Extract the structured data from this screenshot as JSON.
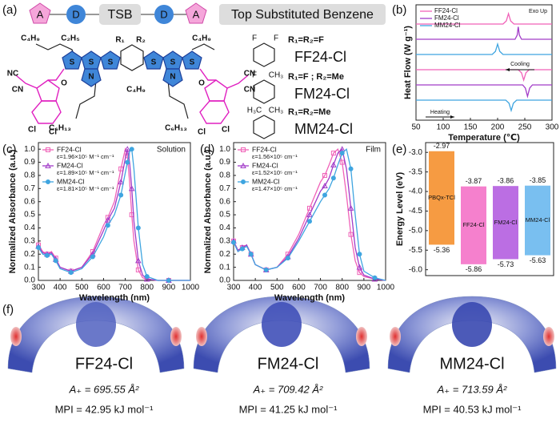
{
  "panel_labels": [
    "(a)",
    "(b)",
    "(c)",
    "(d)",
    "(e)",
    "(f)"
  ],
  "scheme": {
    "units": [
      "A",
      "D",
      "TSB",
      "D",
      "A"
    ],
    "caption": "Top Substituted Benzene",
    "molecule_labels": [
      "C₄H₉",
      "C₂H₅",
      "R₁",
      "R₂",
      "S",
      "S",
      "S",
      "S",
      "S",
      "S",
      "N",
      "N",
      "NC",
      "CN",
      "O",
      "O",
      "C₄H₉",
      "C₆H₁₃",
      "C₆H₁₃",
      "C₄H₉",
      "CN",
      "CN",
      "Cl",
      "Cl",
      "Cl",
      "Cl"
    ],
    "substituents": [
      {
        "formula": "R₁=R₂=F",
        "name": "FF24-Cl",
        "atoms": [
          "F",
          "F"
        ],
        "color": "#e83fbf"
      },
      {
        "formula": "R₁=F ; R₂=Me",
        "name": "FM24-Cl",
        "atoms": [
          "F",
          "CH₃"
        ],
        "color": "#8e1e8e"
      },
      {
        "formula": "R₁=R₂=Me",
        "name": "MM24-Cl",
        "atoms": [
          "H₃C",
          "CH₃"
        ],
        "color": "#2f98e0"
      }
    ]
  },
  "chart_data": [
    {
      "type": "line",
      "xlabel": "Temperature (℃)",
      "ylabel": "Heat Flow (W g⁻¹)",
      "annotations": [
        "Exo Up",
        "Cooling",
        "Heating"
      ],
      "xlim": [
        50,
        300
      ],
      "xticks": [
        50,
        100,
        150,
        200,
        250,
        300
      ],
      "series": [
        {
          "name": "FF24-Cl",
          "color": "#f062b8",
          "traces": [
            {
              "x": [
                50,
                210,
                216,
                220,
                224,
                230,
                300
              ],
              "values": [
                0,
                0,
                0.3,
                1,
                0.3,
                0,
                0
              ]
            },
            {
              "x": [
                50,
                238,
                244,
                248,
                252,
                258,
                300
              ],
              "values": [
                0,
                0,
                -0.3,
                -1,
                -0.3,
                0,
                0
              ]
            }
          ]
        },
        {
          "name": "FM24-Cl",
          "color": "#a23cc8",
          "traces": [
            {
              "x": [
                50,
                232,
                236,
                238,
                240,
                244,
                300
              ],
              "values": [
                0,
                0,
                0.4,
                1.2,
                0.4,
                0,
                0
              ]
            },
            {
              "x": [
                50,
                246,
                251,
                255,
                259,
                264,
                300
              ],
              "values": [
                0,
                0,
                -0.3,
                -1.1,
                -0.3,
                0,
                0
              ]
            }
          ]
        },
        {
          "name": "MM24-Cl",
          "color": "#3fa5e0",
          "traces": [
            {
              "x": [
                50,
                190,
                196,
                200,
                204,
                210,
                300
              ],
              "values": [
                0,
                0,
                0.3,
                1,
                0.3,
                0,
                0
              ]
            },
            {
              "x": [
                50,
                215,
                221,
                225,
                229,
                235,
                300
              ],
              "values": [
                0,
                0,
                -0.3,
                -1,
                -0.3,
                0,
                0
              ]
            }
          ]
        }
      ]
    },
    {
      "type": "line",
      "title": "Solution",
      "xlabel": "Wavelength (nm)",
      "ylabel": "Normalized Absorbance (a.u.)",
      "markers": true,
      "xlim": [
        300,
        1000
      ],
      "xticks": [
        300,
        400,
        500,
        600,
        700,
        800,
        900,
        1000
      ],
      "ylim": [
        0,
        1.05
      ],
      "yticks": [
        {
          "value": 0,
          "label": "0.0"
        },
        0.1,
        0.2,
        0.3,
        0.4,
        0.5,
        0.6,
        0.7,
        0.8,
        0.9,
        {
          "value": 1,
          "label": "1.0"
        }
      ],
      "x": [
        300,
        320,
        340,
        360,
        380,
        400,
        450,
        500,
        550,
        600,
        620,
        650,
        680,
        700,
        710,
        720,
        730,
        740,
        760,
        780,
        800,
        850,
        900,
        1000
      ],
      "series": [
        {
          "name": "FF24-Cl",
          "epsilon": "ε=1.96×10⁵ M⁻¹ cm⁻¹",
          "color": "#f062b8",
          "marker": "square",
          "values": [
            0.27,
            0.22,
            0.2,
            0.22,
            0.17,
            0.1,
            0.07,
            0.1,
            0.22,
            0.42,
            0.48,
            0.6,
            0.85,
            1.0,
            0.95,
            0.75,
            0.5,
            0.3,
            0.08,
            0.02,
            0.01,
            0,
            0,
            0
          ]
        },
        {
          "name": "FM24-Cl",
          "epsilon": "ε=1.89×10⁵ M⁻¹ cm⁻¹",
          "color": "#a23cc8",
          "marker": "triangle",
          "values": [
            0.26,
            0.21,
            0.2,
            0.21,
            0.16,
            0.1,
            0.07,
            0.1,
            0.2,
            0.38,
            0.46,
            0.55,
            0.75,
            0.93,
            1.0,
            0.9,
            0.7,
            0.45,
            0.15,
            0.04,
            0.01,
            0,
            0,
            0
          ]
        },
        {
          "name": "MM24-Cl",
          "epsilon": "ε=1.81×10⁵ M⁻¹ cm⁻¹",
          "color": "#3fa5e0",
          "marker": "circle",
          "values": [
            0.25,
            0.2,
            0.19,
            0.2,
            0.15,
            0.09,
            0.06,
            0.09,
            0.18,
            0.33,
            0.42,
            0.5,
            0.65,
            0.82,
            0.9,
            0.98,
            1.0,
            0.85,
            0.4,
            0.12,
            0.03,
            0,
            0,
            0
          ]
        }
      ]
    },
    {
      "type": "line",
      "title": "Film",
      "xlabel": "Wavelength (nm)",
      "ylabel": "Normalized Absorbance (a.u.)",
      "markers": true,
      "xlim": [
        300,
        1000
      ],
      "xticks": [
        300,
        400,
        500,
        600,
        700,
        800,
        900,
        1000
      ],
      "ylim": [
        0,
        1.05
      ],
      "yticks": [
        {
          "value": 0,
          "label": "0.0"
        },
        0.1,
        0.2,
        0.3,
        0.4,
        0.5,
        0.6,
        0.7,
        0.8,
        0.9,
        {
          "value": 1,
          "label": "1.0"
        }
      ],
      "x": [
        300,
        320,
        340,
        360,
        380,
        400,
        450,
        500,
        550,
        600,
        650,
        700,
        720,
        740,
        760,
        780,
        800,
        820,
        840,
        860,
        880,
        900,
        950,
        1000
      ],
      "series": [
        {
          "name": "FF24-Cl",
          "epsilon": "ε=1.56×10⁵ cm⁻¹",
          "color": "#f062b8",
          "marker": "square",
          "values": [
            0.3,
            0.22,
            0.25,
            0.27,
            0.2,
            0.12,
            0.08,
            0.1,
            0.2,
            0.35,
            0.55,
            0.75,
            0.8,
            0.88,
            0.97,
            1.0,
            0.9,
            0.65,
            0.35,
            0.15,
            0.06,
            0.03,
            0.01,
            0
          ]
        },
        {
          "name": "FM24-Cl",
          "epsilon": "ε=1.52×10⁵ cm⁻¹",
          "color": "#a23cc8",
          "marker": "triangle",
          "values": [
            0.3,
            0.23,
            0.25,
            0.27,
            0.2,
            0.12,
            0.08,
            0.1,
            0.18,
            0.32,
            0.5,
            0.68,
            0.72,
            0.78,
            0.88,
            0.97,
            1.0,
            0.85,
            0.55,
            0.25,
            0.1,
            0.04,
            0.01,
            0
          ]
        },
        {
          "name": "MM24-Cl",
          "epsilon": "ε=1.47×10⁵ cm⁻¹",
          "color": "#3fa5e0",
          "marker": "circle",
          "values": [
            0.29,
            0.22,
            0.24,
            0.26,
            0.2,
            0.12,
            0.08,
            0.1,
            0.17,
            0.3,
            0.45,
            0.6,
            0.65,
            0.7,
            0.78,
            0.88,
            0.97,
            1.0,
            0.85,
            0.5,
            0.2,
            0.07,
            0.02,
            0
          ]
        }
      ]
    },
    {
      "type": "floating_bar",
      "ylabel": "Energy Level (eV)",
      "ylim": [
        -6.15,
        -2.75
      ],
      "yticks": [
        {
          "value": -3,
          "label": "-3.0"
        },
        -3.5,
        {
          "value": -4,
          "label": "-4.0"
        },
        -4.5,
        {
          "value": -5,
          "label": "-5.0"
        },
        -5.5,
        {
          "value": -6,
          "label": "-6.0"
        }
      ],
      "categories": [
        "PBQx-TCl",
        "FF24-Cl",
        "FM24-Cl",
        "MM24-Cl"
      ],
      "lumo": [
        -2.97,
        -3.87,
        -3.86,
        -3.85
      ],
      "homo": [
        -5.36,
        -5.86,
        -5.73,
        -5.63
      ],
      "colors": [
        "#f5902e",
        "#f472c8",
        "#b45ee0",
        "#6ab8ee"
      ]
    }
  ],
  "esp": [
    {
      "name": "FF24-Cl",
      "area": "A₊ = 695.55 Å²",
      "mpi": "MPI = 42.95 kJ mol⁻¹",
      "color": "#e83fbf"
    },
    {
      "name": "FM24-Cl",
      "area": "A₊ = 709.42 Å²",
      "mpi": "MPI = 41.25 kJ mol⁻¹",
      "color": "#8e1e8e"
    },
    {
      "name": "MM24-Cl",
      "area": "A₊ = 713.59 Å²",
      "mpi": "MPI = 40.53 kJ mol⁻¹",
      "color": "#2f98e0"
    }
  ]
}
